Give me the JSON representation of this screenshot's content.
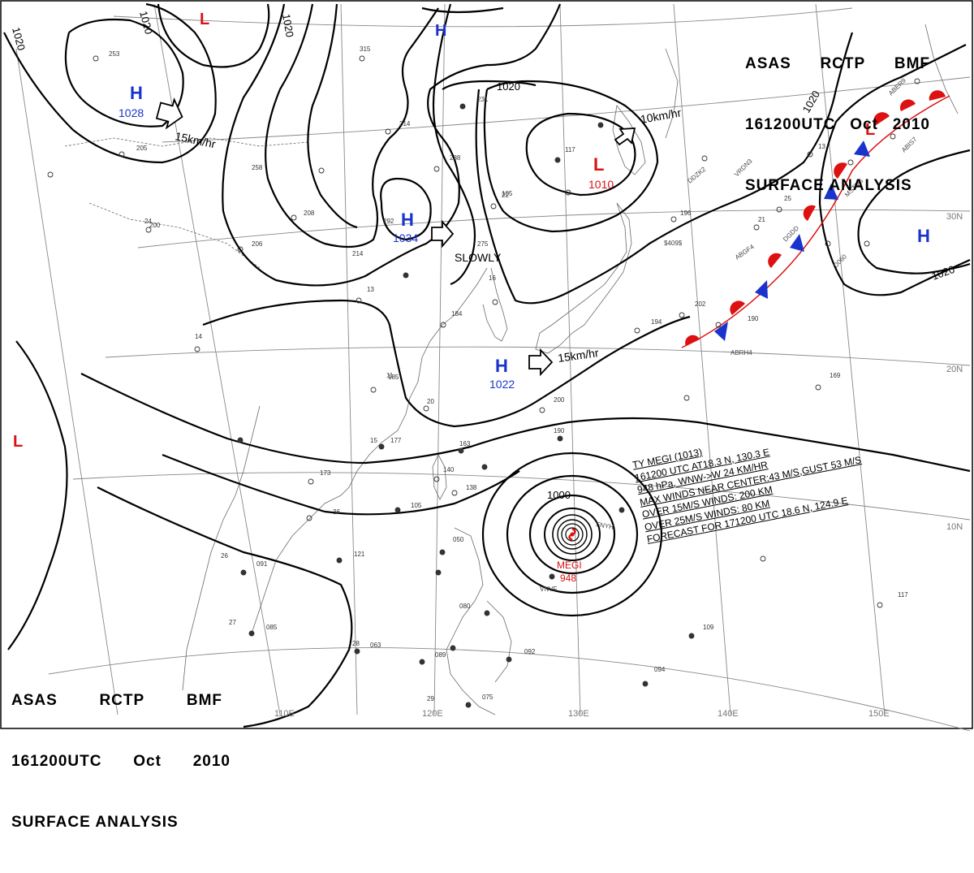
{
  "header": {
    "agency": "ASAS",
    "station": "RCTP",
    "code": "BMF",
    "datetime": "161200UTC",
    "month": "Oct",
    "year": "2010",
    "title": "SURFACE ANALYSIS"
  },
  "graticule": {
    "lon_labels": [
      "110E",
      "120E",
      "130E",
      "140E",
      "150E"
    ],
    "lat_labels": [
      "10N",
      "20N",
      "30N"
    ]
  },
  "pressure_systems": [
    {
      "type": "H",
      "value": "1028",
      "color": "#1a33cc"
    },
    {
      "type": "H",
      "value": "1034",
      "color": "#1a33cc"
    },
    {
      "type": "H",
      "value": "1022",
      "color": "#1a33cc"
    },
    {
      "type": "H",
      "value": "",
      "color": "#1a33cc"
    },
    {
      "type": "H",
      "value": "",
      "color": "#1a33cc"
    },
    {
      "type": "L",
      "value": "1010",
      "color": "#dd1111"
    },
    {
      "type": "L",
      "value": "",
      "color": "#dd1111"
    },
    {
      "type": "L",
      "value": "",
      "color": "#dd1111"
    },
    {
      "type": "L",
      "value": "",
      "color": "#dd1111"
    }
  ],
  "isobar_labels": [
    "1020",
    "1020",
    "1020",
    "1020",
    "1020",
    "1020",
    "1000"
  ],
  "movement_labels": [
    "15km/hr",
    "10km/hr",
    "SLOWLY",
    "15km/hr"
  ],
  "typhoon": {
    "name": "MEGI",
    "central_pressure": "948",
    "info": [
      "TY  MEGI  (1013)",
      "161200  UTC  AT18.3 N, 130.3 E",
      "948 hPa, WNW->W  24 KM/HR",
      "MAX WINDS NEAR CENTER:43 M/S,GUST 53 M/S",
      "OVER 15M/S WINDS: 200 KM",
      "OVER 25M/S WINDS: 80 KM",
      "FORECAST FOR 171200 UTC 18.6 N, 124.9 E"
    ]
  },
  "station_ids": [
    "VRDN3",
    "ABER9",
    "ABIS7",
    "MSTM6",
    "DGDD",
    "D060",
    "ABGF4",
    "DDZK2",
    "$409$",
    "ABRH4",
    "FNYH",
    "VNVF"
  ],
  "station_numbers": [
    "253",
    "205",
    "315",
    "314",
    "231",
    "288",
    "117",
    "258",
    "208",
    "200",
    "206",
    "214",
    "292",
    "275",
    "22",
    "185",
    "184",
    "196",
    "13",
    "202",
    "190",
    "194",
    "169",
    "177",
    "200",
    "190",
    "163",
    "173",
    "140",
    "138",
    "36",
    "105",
    "121",
    "091",
    "050",
    "080",
    "085",
    "063",
    "089",
    "092",
    "075",
    "094",
    "109",
    "117",
    "105",
    "24",
    "14",
    "11",
    "16",
    "13",
    "15",
    "20",
    "21",
    "25",
    "26",
    "27",
    "28",
    "29"
  ],
  "colors": {
    "high": "#1a33cc",
    "low": "#dd1111",
    "cold_front": "#1a33cc",
    "warm_front": "#dd1111",
    "isobar": "#000000",
    "graticule": "#777777",
    "coast": "#666666"
  }
}
